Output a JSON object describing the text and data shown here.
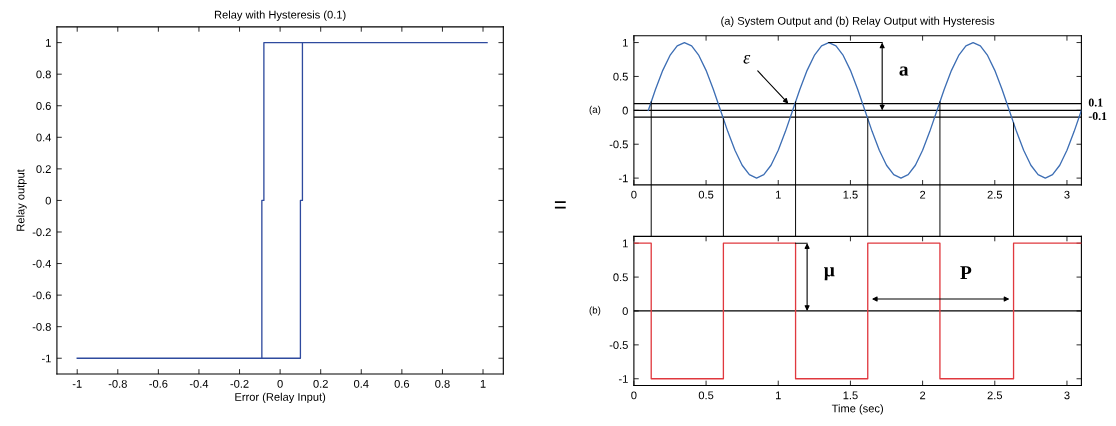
{
  "chart_data": [
    {
      "type": "line",
      "title": "Relay with Hysteresis (0.1)",
      "xlabel": "Error (Relay Input)",
      "ylabel": "Relay output",
      "xlim": [
        -1.1,
        1.1
      ],
      "ylim": [
        -1.1,
        1.1
      ],
      "xticks": [
        -1,
        -0.8,
        -0.6,
        -0.4,
        -0.2,
        0,
        0.2,
        0.4,
        0.6,
        0.8,
        1
      ],
      "yticks": [
        -1,
        -0.8,
        -0.6,
        -0.4,
        -0.2,
        0,
        0.2,
        0.4,
        0.6,
        0.8,
        1
      ],
      "series": [
        {
          "color": "#2e4a9e",
          "x": [
            -1,
            0.1,
            0.1,
            0.11,
            0.11,
            1.02
          ],
          "values": [
            -1,
            -1,
            0,
            0,
            1,
            1
          ]
        },
        {
          "color": "#2e4a9e",
          "x": [
            -0.09,
            -0.09,
            -0.08,
            -0.08,
            0.11
          ],
          "values": [
            -1,
            0,
            0,
            1,
            1
          ]
        }
      ],
      "annotations": [
        "="
      ]
    },
    {
      "type": "line",
      "title": "(a) System Output and (b) Relay Output with Hysteresis",
      "ylabel": "(a)",
      "xlim": [
        0,
        3.1
      ],
      "ylim": [
        -1.1,
        1.1
      ],
      "xticks": [
        0,
        0.5,
        1,
        1.5,
        2,
        2.5,
        3
      ],
      "yticks": [
        -1,
        -0.5,
        0,
        0.5,
        1
      ],
      "series": [
        {
          "color": "#3d6eb4",
          "x": [
            0.1,
            0.15,
            0.2,
            0.25,
            0.3,
            0.35,
            0.4,
            0.45,
            0.5,
            0.55,
            0.6,
            0.65,
            0.7,
            0.75,
            0.8,
            0.85,
            0.9,
            0.95,
            1,
            1.05,
            1.1,
            1.15,
            1.2,
            1.25,
            1.3,
            1.35,
            1.4,
            1.45,
            1.5,
            1.55,
            1.6,
            1.65,
            1.7,
            1.75,
            1.8,
            1.85,
            1.9,
            1.95,
            2,
            2.05,
            2.1,
            2.15,
            2.2,
            2.25,
            2.3,
            2.35,
            2.4,
            2.45,
            2.5,
            2.55,
            2.6,
            2.65,
            2.7,
            2.75,
            2.8,
            2.85,
            2.9,
            2.95,
            3,
            3.05,
            3.1
          ],
          "values": [
            0,
            0.31,
            0.59,
            0.81,
            0.95,
            1,
            0.95,
            0.81,
            0.59,
            0.31,
            0,
            -0.31,
            -0.59,
            -0.81,
            -0.95,
            -1,
            -0.95,
            -0.81,
            -0.59,
            -0.31,
            0,
            0.31,
            0.59,
            0.81,
            0.95,
            1,
            0.95,
            0.81,
            0.59,
            0.31,
            0,
            -0.31,
            -0.59,
            -0.81,
            -0.95,
            -1,
            -0.95,
            -0.81,
            -0.59,
            -0.31,
            0,
            0.31,
            0.59,
            0.81,
            0.95,
            1,
            0.95,
            0.81,
            0.59,
            0.31,
            0,
            -0.31,
            -0.59,
            -0.81,
            -0.95,
            -1,
            -0.95,
            -0.81,
            -0.59,
            -0.31,
            0
          ]
        }
      ],
      "ref_lines": [
        {
          "axis": "y",
          "value": 0.1,
          "label": "0.1",
          "color": "#000000"
        },
        {
          "axis": "y",
          "value": 0,
          "color": "#000000"
        },
        {
          "axis": "y",
          "value": -0.1,
          "label": "-0.1",
          "color": "#000000"
        },
        {
          "axis": "x",
          "value": 0.12,
          "color": "#000000"
        },
        {
          "axis": "x",
          "value": 0.62,
          "color": "#000000"
        },
        {
          "axis": "x",
          "value": 1.12,
          "color": "#000000"
        },
        {
          "axis": "x",
          "value": 1.62,
          "color": "#000000"
        },
        {
          "axis": "x",
          "value": 2.12,
          "color": "#000000"
        },
        {
          "axis": "x",
          "value": 2.63,
          "color": "#000000"
        }
      ],
      "annotations": [
        {
          "text": "ε",
          "x": 1.07,
          "y": 0.1
        },
        {
          "text": "a",
          "x": 1.72,
          "y": 0
        }
      ]
    },
    {
      "type": "step",
      "xlabel": "Time (sec)",
      "ylabel": "(b)",
      "xlim": [
        0,
        3.1
      ],
      "ylim": [
        -1.1,
        1.1
      ],
      "xticks": [
        0,
        0.5,
        1,
        1.5,
        2,
        2.5,
        3
      ],
      "yticks": [
        -1,
        -0.5,
        0,
        0.5,
        1
      ],
      "series": [
        {
          "color": "#e0383e",
          "x": [
            0,
            0.12,
            0.62,
            1.12,
            1.62,
            2.12,
            2.63,
            3.1
          ],
          "values": [
            1,
            -1,
            1,
            -1,
            1,
            -1,
            1,
            1
          ]
        }
      ],
      "ref_lines": [
        {
          "axis": "y",
          "value": 0,
          "color": "#000000"
        }
      ],
      "annotations": [
        {
          "text": "μ",
          "x": 1.2,
          "y": 0
        },
        {
          "text": "P",
          "x": 2.3,
          "y": 0
        }
      ]
    }
  ]
}
